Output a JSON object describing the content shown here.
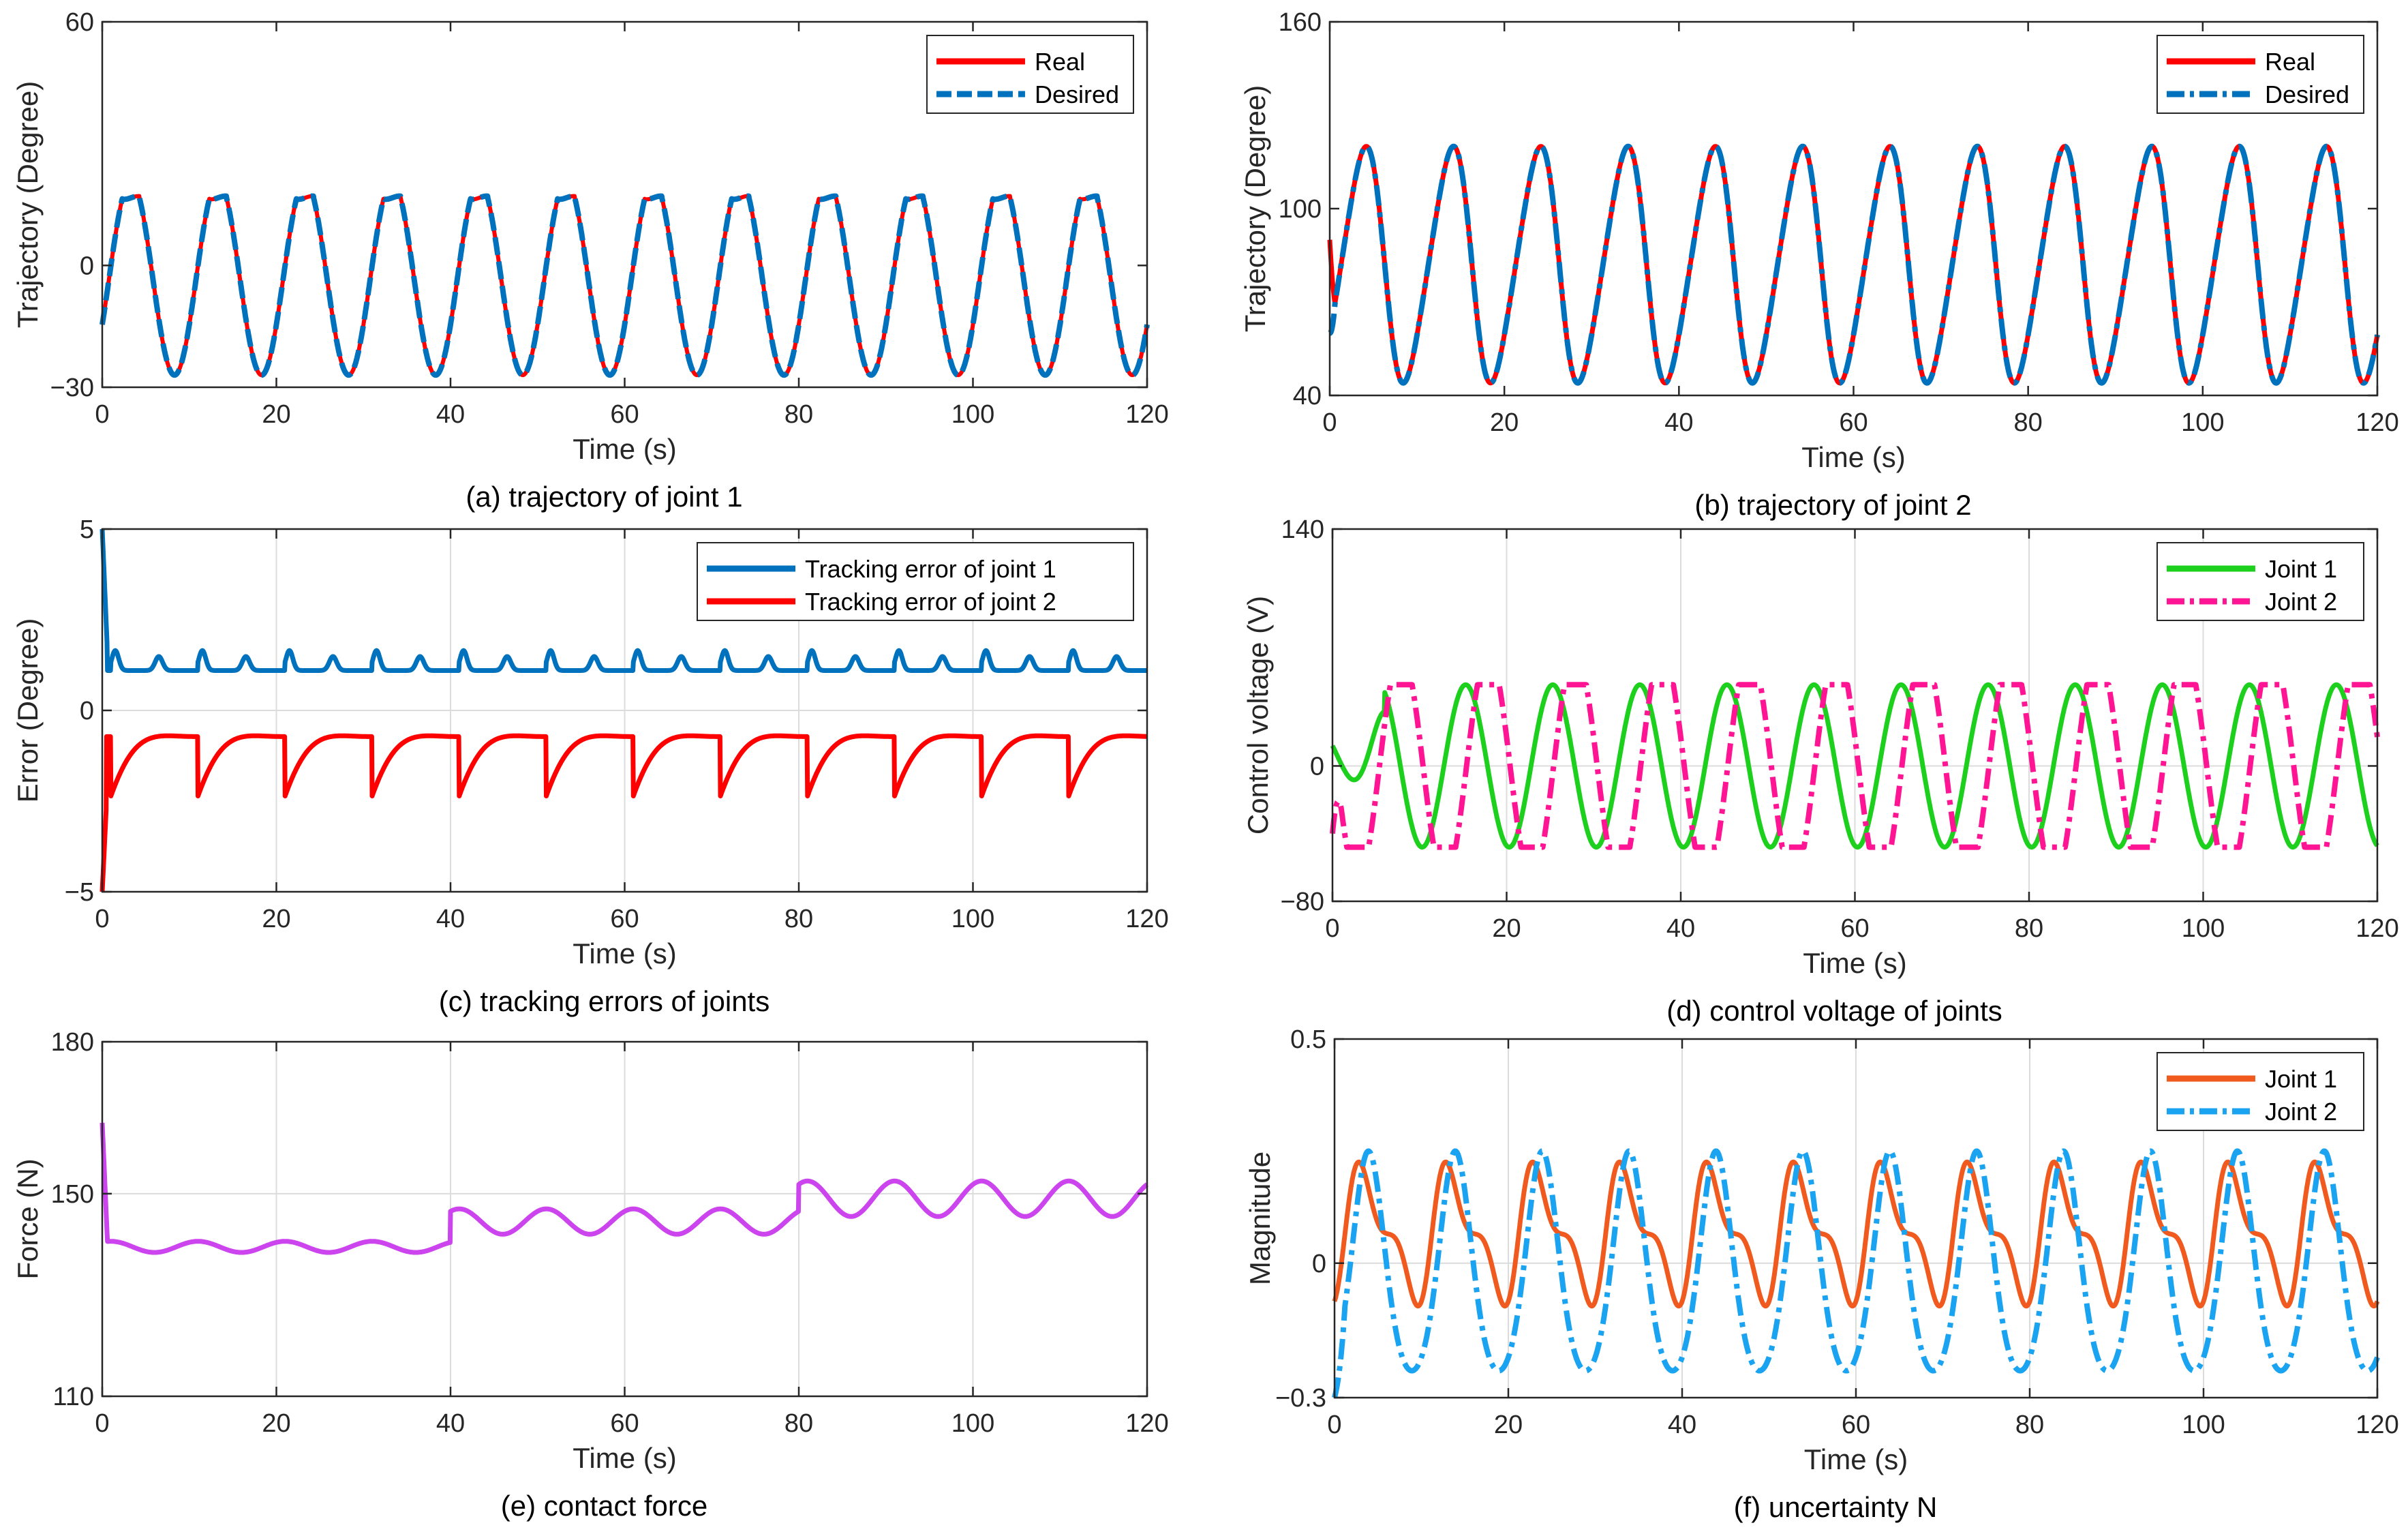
{
  "chart_data": [
    {
      "id": "a",
      "type": "line",
      "caption": "(a) trajectory of joint 1",
      "xlabel": "Time (s)",
      "ylabel": "Trajectory (Degree)",
      "xlim": [
        0,
        120
      ],
      "ylim": [
        -30,
        60
      ],
      "xticks": [
        0,
        20,
        40,
        60,
        80,
        100,
        120
      ],
      "yticks": [
        -30,
        0,
        60
      ],
      "grid": false,
      "legend_position": "top-right",
      "series": [
        {
          "name": "Real",
          "color": "#ff0000",
          "style": "solid",
          "model": {
            "kind": "traj1",
            "amp": 24,
            "offset": -3,
            "period": 10,
            "phase": 0.8,
            "transient": 0
          }
        },
        {
          "name": "Desired",
          "color": "#0072bd",
          "style": "dashed",
          "model": {
            "kind": "traj1",
            "amp": 24,
            "offset": -3,
            "period": 10,
            "phase": 0.8,
            "transient": 0
          }
        }
      ]
    },
    {
      "id": "b",
      "type": "line",
      "caption": "(b) trajectory of joint 2",
      "xlabel": "Time (s)",
      "ylabel": "Trajectory (Degree)",
      "xlim": [
        0,
        120
      ],
      "ylim": [
        40,
        160
      ],
      "xticks": [
        0,
        20,
        40,
        60,
        80,
        100,
        120
      ],
      "yticks": [
        40,
        100,
        160
      ],
      "grid": false,
      "legend_position": "top-right",
      "series": [
        {
          "name": "Real",
          "color": "#ff0000",
          "style": "solid",
          "model": {
            "kind": "traj2",
            "amp": 38,
            "offset": 82,
            "period": 10,
            "phase": 1.3,
            "start": 90
          }
        },
        {
          "name": "Desired",
          "color": "#0072bd",
          "style": "dashdot",
          "model": {
            "kind": "traj2",
            "amp": 38,
            "offset": 82,
            "period": 10,
            "phase": 1.3,
            "start": 60
          }
        }
      ]
    },
    {
      "id": "c",
      "type": "line",
      "caption": "(c) tracking errors of joints",
      "xlabel": "Time (s)",
      "ylabel": "Error (Degree)",
      "xlim": [
        0,
        120
      ],
      "ylim": [
        -5,
        5
      ],
      "xticks": [
        0,
        20,
        40,
        60,
        80,
        100,
        120
      ],
      "yticks": [
        -5,
        0,
        5
      ],
      "grid": true,
      "legend_position": "top-right",
      "series": [
        {
          "name": "Tracking error of joint 1",
          "color": "#0072bd",
          "style": "solid",
          "model": {
            "kind": "err1",
            "base": 1.1,
            "bump": 0.55,
            "period": 10,
            "start": 5
          }
        },
        {
          "name": "Tracking error of joint 2",
          "color": "#ff0000",
          "style": "solid",
          "model": {
            "kind": "err2",
            "high": -0.7,
            "low": -2.65,
            "period": 10,
            "shift": 1,
            "start": -5
          }
        }
      ]
    },
    {
      "id": "d",
      "type": "line",
      "caption": "(d) control voltage of joints",
      "xlabel": "Time (s)",
      "ylabel": "Control voltage (V)",
      "xlim": [
        0,
        120
      ],
      "ylim": [
        -80,
        140
      ],
      "xticks": [
        0,
        20,
        40,
        60,
        80,
        100,
        120
      ],
      "yticks": [
        -80,
        0,
        140
      ],
      "grid": true,
      "legend_position": "top-right",
      "series": [
        {
          "name": "Joint 1",
          "color": "#1ed01e",
          "style": "solid",
          "model": {
            "kind": "volt1",
            "amp": 48,
            "offset": 0,
            "period": 10,
            "phase": 2.8
          }
        },
        {
          "name": "Joint 2",
          "color": "#ff1493",
          "style": "dashdot",
          "model": {
            "kind": "volt2",
            "amp": 48,
            "offset": 0,
            "period": 10,
            "phase": 5.4,
            "clip": 0.92
          }
        }
      ]
    },
    {
      "id": "e",
      "type": "line",
      "caption": "(e) contact force",
      "xlabel": "Time (s)",
      "ylabel": "Force (N)",
      "xlim": [
        0,
        120
      ],
      "ylim": [
        110,
        180
      ],
      "xticks": [
        0,
        20,
        40,
        60,
        80,
        100,
        120
      ],
      "yticks": [
        110,
        150,
        180
      ],
      "grid": true,
      "legend_position": "none",
      "series": [
        {
          "name": "Force",
          "color": "#cc44ee",
          "style": "solid",
          "model": {
            "kind": "force",
            "levels": [
              [
                0,
                40,
                139.5,
                1.1
              ],
              [
                40,
                80,
                144.5,
                2.5
              ],
              [
                80,
                120,
                149,
                3.5
              ]
            ],
            "period": 10,
            "start": 164
          }
        }
      ]
    },
    {
      "id": "f",
      "type": "line",
      "caption": "(f) uncertainty N",
      "xlabel": "Time (s)",
      "ylabel": "Magnitude",
      "xlim": [
        0,
        120
      ],
      "ylim": [
        -0.3,
        0.5
      ],
      "xticks": [
        0,
        20,
        40,
        60,
        80,
        100,
        120
      ],
      "yticks": [
        -0.3,
        0,
        0.5
      ],
      "grid": true,
      "legend_position": "top-right",
      "series": [
        {
          "name": "Joint 1",
          "color": "#f05a1e",
          "style": "solid",
          "model": {
            "kind": "unc1",
            "amp": 0.135,
            "offset": 0.065,
            "period": 10
          }
        },
        {
          "name": "Joint 2",
          "color": "#1aa3f0",
          "style": "dashdot",
          "model": {
            "kind": "unc2",
            "amp": 0.245,
            "offset": 0.005,
            "period": 10,
            "phase": 3.9,
            "start": -0.3
          }
        }
      ]
    }
  ]
}
